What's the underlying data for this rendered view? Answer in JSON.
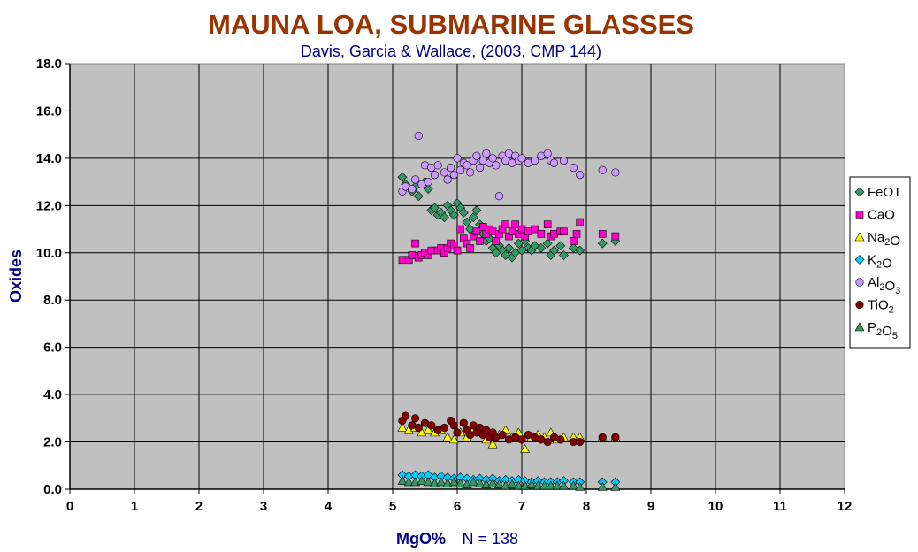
{
  "chart_data": {
    "type": "scatter",
    "title": "MAUNA LOA, SUBMARINE GLASSES",
    "subtitle": "Davis, Garcia & Wallace, (2003, CMP 144)",
    "xlabel": "MgO%",
    "note": "N = 138",
    "ylabel": "Oxides",
    "xlim": [
      0,
      12
    ],
    "ylim": [
      0,
      18
    ],
    "x_ticks": [
      "0",
      "1",
      "2",
      "3",
      "4",
      "5",
      "6",
      "7",
      "8",
      "9",
      "10",
      "11",
      "12"
    ],
    "y_ticks": [
      "0.0",
      "2.0",
      "4.0",
      "6.0",
      "8.0",
      "10.0",
      "12.0",
      "14.0",
      "16.0",
      "18.0"
    ],
    "grid": true,
    "legend_position": "right",
    "colors": {
      "title": "#993300",
      "subtitle": "#000080",
      "axis_label": "#000080",
      "plot_background": "#c0c0c0"
    },
    "series": [
      {
        "name": "FeOT",
        "name_main": "FeOT",
        "marker": "diamond",
        "color": "#339966",
        "points": [
          [
            5.15,
            13.2
          ],
          [
            5.2,
            12.9
          ],
          [
            5.3,
            12.6
          ],
          [
            5.35,
            12.8
          ],
          [
            5.4,
            12.4
          ],
          [
            5.5,
            13.0
          ],
          [
            5.55,
            12.7
          ],
          [
            5.6,
            11.8
          ],
          [
            5.65,
            11.9
          ],
          [
            5.7,
            11.6
          ],
          [
            5.75,
            11.7
          ],
          [
            5.8,
            11.5
          ],
          [
            5.85,
            12.0
          ],
          [
            5.9,
            11.8
          ],
          [
            5.95,
            11.6
          ],
          [
            6.0,
            12.1
          ],
          [
            6.05,
            11.9
          ],
          [
            6.1,
            11.7
          ],
          [
            6.15,
            11.3
          ],
          [
            6.2,
            11.0
          ],
          [
            6.25,
            11.5
          ],
          [
            6.3,
            11.8
          ],
          [
            6.35,
            11.2
          ],
          [
            6.4,
            10.8
          ],
          [
            6.45,
            10.5
          ],
          [
            6.5,
            10.6
          ],
          [
            6.55,
            10.2
          ],
          [
            6.6,
            10.0
          ],
          [
            6.65,
            10.3
          ],
          [
            6.7,
            10.1
          ],
          [
            6.75,
            9.9
          ],
          [
            6.8,
            10.2
          ],
          [
            6.85,
            9.8
          ],
          [
            6.9,
            10.0
          ],
          [
            6.95,
            10.4
          ],
          [
            7.0,
            10.1
          ],
          [
            7.05,
            10.5
          ],
          [
            7.1,
            10.2
          ],
          [
            7.15,
            10.1
          ],
          [
            7.2,
            10.3
          ],
          [
            7.3,
            10.2
          ],
          [
            7.4,
            10.4
          ],
          [
            7.45,
            9.9
          ],
          [
            7.5,
            10.1
          ],
          [
            7.6,
            10.3
          ],
          [
            7.65,
            9.9
          ],
          [
            7.8,
            10.2
          ],
          [
            7.9,
            10.1
          ],
          [
            8.25,
            10.4
          ],
          [
            8.45,
            10.5
          ]
        ]
      },
      {
        "name": "CaO",
        "name_main": "CaO",
        "marker": "square",
        "color": "#ff00cc",
        "points": [
          [
            5.15,
            9.7
          ],
          [
            5.25,
            9.7
          ],
          [
            5.3,
            9.9
          ],
          [
            5.35,
            10.4
          ],
          [
            5.4,
            9.8
          ],
          [
            5.45,
            9.9
          ],
          [
            5.5,
            10.0
          ],
          [
            5.55,
            9.9
          ],
          [
            5.6,
            10.1
          ],
          [
            5.7,
            10.1
          ],
          [
            5.75,
            10.2
          ],
          [
            5.8,
            10.0
          ],
          [
            5.85,
            10.2
          ],
          [
            5.9,
            10.4
          ],
          [
            5.95,
            10.3
          ],
          [
            6.0,
            10.1
          ],
          [
            6.05,
            11.0
          ],
          [
            6.1,
            10.6
          ],
          [
            6.15,
            10.4
          ],
          [
            6.2,
            10.2
          ],
          [
            6.25,
            10.7
          ],
          [
            6.3,
            10.9
          ],
          [
            6.35,
            10.5
          ],
          [
            6.4,
            11.1
          ],
          [
            6.45,
            10.8
          ],
          [
            6.5,
            11.0
          ],
          [
            6.55,
            10.9
          ],
          [
            6.6,
            10.5
          ],
          [
            6.65,
            10.8
          ],
          [
            6.7,
            11.0
          ],
          [
            6.75,
            11.2
          ],
          [
            6.8,
            10.7
          ],
          [
            6.85,
            10.9
          ],
          [
            6.9,
            11.2
          ],
          [
            6.95,
            10.8
          ],
          [
            7.0,
            11.0
          ],
          [
            7.05,
            10.7
          ],
          [
            7.1,
            10.9
          ],
          [
            7.2,
            11.0
          ],
          [
            7.3,
            10.8
          ],
          [
            7.4,
            11.2
          ],
          [
            7.45,
            10.7
          ],
          [
            7.5,
            10.8
          ],
          [
            7.6,
            10.9
          ],
          [
            7.65,
            10.9
          ],
          [
            7.8,
            10.5
          ],
          [
            7.85,
            10.8
          ],
          [
            7.9,
            11.3
          ],
          [
            8.25,
            10.8
          ],
          [
            8.45,
            10.7
          ]
        ]
      },
      {
        "name": "Na2O",
        "name_main": "Na",
        "name_sub": "2",
        "name_tail": "O",
        "marker": "triangle",
        "color": "#ffff00",
        "points": [
          [
            5.15,
            2.6
          ],
          [
            5.25,
            2.5
          ],
          [
            5.35,
            2.6
          ],
          [
            5.45,
            2.4
          ],
          [
            5.55,
            2.5
          ],
          [
            5.65,
            2.4
          ],
          [
            5.75,
            2.5
          ],
          [
            5.85,
            2.2
          ],
          [
            5.95,
            2.1
          ],
          [
            6.05,
            2.4
          ],
          [
            6.15,
            2.2
          ],
          [
            6.25,
            2.5
          ],
          [
            6.35,
            2.4
          ],
          [
            6.45,
            2.1
          ],
          [
            6.55,
            1.9
          ],
          [
            6.65,
            2.3
          ],
          [
            6.75,
            2.5
          ],
          [
            6.85,
            2.2
          ],
          [
            6.95,
            2.4
          ],
          [
            7.05,
            1.7
          ],
          [
            7.15,
            2.2
          ],
          [
            7.25,
            2.3
          ],
          [
            7.35,
            2.2
          ],
          [
            7.45,
            2.4
          ],
          [
            7.55,
            2.1
          ],
          [
            7.65,
            2.2
          ],
          [
            7.8,
            2.2
          ],
          [
            7.9,
            2.2
          ],
          [
            8.25,
            2.2
          ],
          [
            8.45,
            2.2
          ]
        ]
      },
      {
        "name": "K2O",
        "name_main": "K",
        "name_sub": "2",
        "name_tail": "O",
        "marker": "diamond",
        "color": "#00ccff",
        "points": [
          [
            5.15,
            0.6
          ],
          [
            5.25,
            0.55
          ],
          [
            5.35,
            0.6
          ],
          [
            5.45,
            0.55
          ],
          [
            5.55,
            0.6
          ],
          [
            5.65,
            0.5
          ],
          [
            5.75,
            0.55
          ],
          [
            5.85,
            0.5
          ],
          [
            5.95,
            0.45
          ],
          [
            6.05,
            0.5
          ],
          [
            6.15,
            0.45
          ],
          [
            6.25,
            0.4
          ],
          [
            6.35,
            0.45
          ],
          [
            6.45,
            0.4
          ],
          [
            6.55,
            0.45
          ],
          [
            6.65,
            0.35
          ],
          [
            6.75,
            0.4
          ],
          [
            6.85,
            0.35
          ],
          [
            6.95,
            0.4
          ],
          [
            7.05,
            0.35
          ],
          [
            7.15,
            0.3
          ],
          [
            7.25,
            0.35
          ],
          [
            7.35,
            0.3
          ],
          [
            7.45,
            0.3
          ],
          [
            7.55,
            0.3
          ],
          [
            7.65,
            0.35
          ],
          [
            7.8,
            0.3
          ],
          [
            7.9,
            0.3
          ],
          [
            8.25,
            0.3
          ],
          [
            8.45,
            0.3
          ]
        ]
      },
      {
        "name": "Al2O3",
        "name_main": "Al",
        "name_sub": "2",
        "name_tail": "O",
        "name_sub2": "3",
        "marker": "circle",
        "color": "#cc99ff",
        "points": [
          [
            5.15,
            12.6
          ],
          [
            5.2,
            12.8
          ],
          [
            5.3,
            12.7
          ],
          [
            5.35,
            13.1
          ],
          [
            5.4,
            14.95
          ],
          [
            5.45,
            12.9
          ],
          [
            5.5,
            13.7
          ],
          [
            5.55,
            13.0
          ],
          [
            5.6,
            13.6
          ],
          [
            5.65,
            13.3
          ],
          [
            5.7,
            13.7
          ],
          [
            5.8,
            13.4
          ],
          [
            5.85,
            13.1
          ],
          [
            5.9,
            13.6
          ],
          [
            5.95,
            13.3
          ],
          [
            6.0,
            14.0
          ],
          [
            6.05,
            13.5
          ],
          [
            6.1,
            13.8
          ],
          [
            6.15,
            13.7
          ],
          [
            6.2,
            13.4
          ],
          [
            6.25,
            13.9
          ],
          [
            6.3,
            14.1
          ],
          [
            6.35,
            13.6
          ],
          [
            6.4,
            13.9
          ],
          [
            6.45,
            14.2
          ],
          [
            6.5,
            13.8
          ],
          [
            6.55,
            14.0
          ],
          [
            6.6,
            13.7
          ],
          [
            6.65,
            12.4
          ],
          [
            6.7,
            14.1
          ],
          [
            6.75,
            13.9
          ],
          [
            6.8,
            14.2
          ],
          [
            6.85,
            13.8
          ],
          [
            6.9,
            14.1
          ],
          [
            6.95,
            13.9
          ],
          [
            7.0,
            14.0
          ],
          [
            7.1,
            13.8
          ],
          [
            7.2,
            13.9
          ],
          [
            7.3,
            14.1
          ],
          [
            7.4,
            14.2
          ],
          [
            7.45,
            13.9
          ],
          [
            7.5,
            13.8
          ],
          [
            7.65,
            13.9
          ],
          [
            7.8,
            13.6
          ],
          [
            7.9,
            13.3
          ],
          [
            8.25,
            13.5
          ],
          [
            8.45,
            13.4
          ]
        ]
      },
      {
        "name": "TiO2",
        "name_main": "TiO",
        "name_sub": "2",
        "marker": "circle",
        "color": "#800000",
        "points": [
          [
            5.15,
            2.9
          ],
          [
            5.2,
            3.1
          ],
          [
            5.3,
            2.7
          ],
          [
            5.35,
            3.0
          ],
          [
            5.4,
            2.6
          ],
          [
            5.5,
            2.8
          ],
          [
            5.6,
            2.7
          ],
          [
            5.7,
            2.5
          ],
          [
            5.8,
            2.6
          ],
          [
            5.9,
            2.9
          ],
          [
            5.95,
            2.7
          ],
          [
            6.0,
            2.4
          ],
          [
            6.1,
            2.8
          ],
          [
            6.15,
            2.5
          ],
          [
            6.2,
            2.3
          ],
          [
            6.25,
            2.7
          ],
          [
            6.3,
            2.4
          ],
          [
            6.35,
            2.6
          ],
          [
            6.4,
            2.3
          ],
          [
            6.45,
            2.5
          ],
          [
            6.5,
            2.2
          ],
          [
            6.55,
            2.4
          ],
          [
            6.6,
            2.2
          ],
          [
            6.7,
            2.3
          ],
          [
            6.8,
            2.1
          ],
          [
            6.9,
            2.2
          ],
          [
            7.0,
            2.1
          ],
          [
            7.1,
            2.3
          ],
          [
            7.2,
            2.2
          ],
          [
            7.3,
            2.1
          ],
          [
            7.4,
            2.0
          ],
          [
            7.5,
            2.2
          ],
          [
            7.6,
            2.1
          ],
          [
            7.8,
            2.0
          ],
          [
            7.9,
            2.0
          ],
          [
            8.25,
            2.2
          ],
          [
            8.45,
            2.2
          ]
        ]
      },
      {
        "name": "P2O5",
        "name_main": "P",
        "name_sub": "2",
        "name_tail": "O",
        "name_sub2": "5",
        "marker": "triangle",
        "color": "#339966",
        "points": [
          [
            5.15,
            0.35
          ],
          [
            5.25,
            0.3
          ],
          [
            5.35,
            0.3
          ],
          [
            5.45,
            0.35
          ],
          [
            5.55,
            0.3
          ],
          [
            5.65,
            0.25
          ],
          [
            5.75,
            0.3
          ],
          [
            5.85,
            0.25
          ],
          [
            5.95,
            0.3
          ],
          [
            6.05,
            0.25
          ],
          [
            6.15,
            0.2
          ],
          [
            6.25,
            0.3
          ],
          [
            6.35,
            0.25
          ],
          [
            6.45,
            0.2
          ],
          [
            6.55,
            0.25
          ],
          [
            6.65,
            0.2
          ],
          [
            6.75,
            0.15
          ],
          [
            6.85,
            0.2
          ],
          [
            6.95,
            0.15
          ],
          [
            7.05,
            0.15
          ],
          [
            7.15,
            0.2
          ],
          [
            7.25,
            0.15
          ],
          [
            7.35,
            0.15
          ],
          [
            7.45,
            0.15
          ],
          [
            7.55,
            0.15
          ],
          [
            7.65,
            0.15
          ],
          [
            7.8,
            0.15
          ],
          [
            7.9,
            0.1
          ],
          [
            8.25,
            0.1
          ],
          [
            8.45,
            0.1
          ]
        ]
      }
    ]
  }
}
